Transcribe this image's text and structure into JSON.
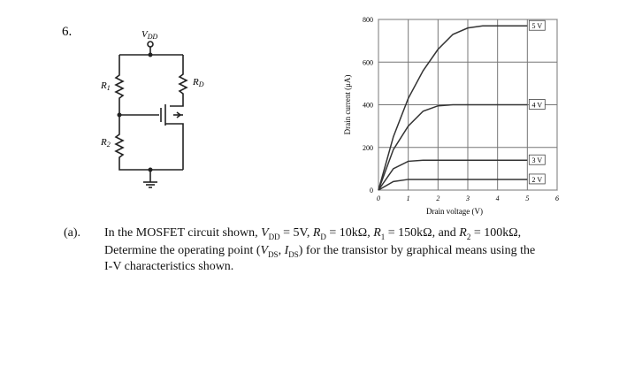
{
  "problem_number": "6.",
  "circuit": {
    "vdd": [
      "V",
      "DD"
    ],
    "r1": [
      "R",
      "1"
    ],
    "r2": [
      "R",
      "2"
    ],
    "rd": [
      "R",
      "D"
    ]
  },
  "chart_data": {
    "type": "line",
    "x_label": "Drain voltage (V)",
    "y_label": "Drain current (μA)",
    "x": [
      0,
      0.5,
      1,
      1.5,
      2,
      2.5,
      3,
      3.5,
      4,
      4.5,
      5
    ],
    "series": [
      {
        "name": "5 V",
        "color": "#333333",
        "values": [
          0,
          250,
          430,
          560,
          660,
          730,
          760,
          770,
          770,
          770,
          770
        ]
      },
      {
        "name": "4 V",
        "color": "#333333",
        "values": [
          0,
          190,
          300,
          370,
          395,
          400,
          400,
          400,
          400,
          400,
          400
        ]
      },
      {
        "name": "3 V",
        "color": "#333333",
        "values": [
          0,
          100,
          135,
          140,
          140,
          140,
          140,
          140,
          140,
          140,
          140
        ]
      },
      {
        "name": "2 V",
        "color": "#333333",
        "values": [
          0,
          40,
          50,
          50,
          50,
          50,
          50,
          50,
          50,
          50,
          50
        ]
      }
    ],
    "xlim": [
      0,
      6
    ],
    "xticks": [
      0,
      1,
      2,
      3,
      4,
      5,
      6
    ],
    "ylim": [
      0,
      800
    ],
    "yticks": [
      0,
      200,
      400,
      600,
      800
    ],
    "grid": true
  },
  "question": {
    "label": "(a).",
    "line1": [
      "In the MOSFET circuit shown, ",
      "V",
      "DD",
      " = 5V, ",
      "R",
      "D",
      " = 10kΩ, ",
      "R",
      "1",
      " = 150kΩ, and ",
      "R",
      "2",
      " = 100kΩ,"
    ],
    "line2": [
      "Determine the operating point (",
      "V",
      "DS",
      ", ",
      "I",
      "DS",
      ") for the transistor by graphical means using the"
    ],
    "line3": "I-V characteristics shown."
  }
}
